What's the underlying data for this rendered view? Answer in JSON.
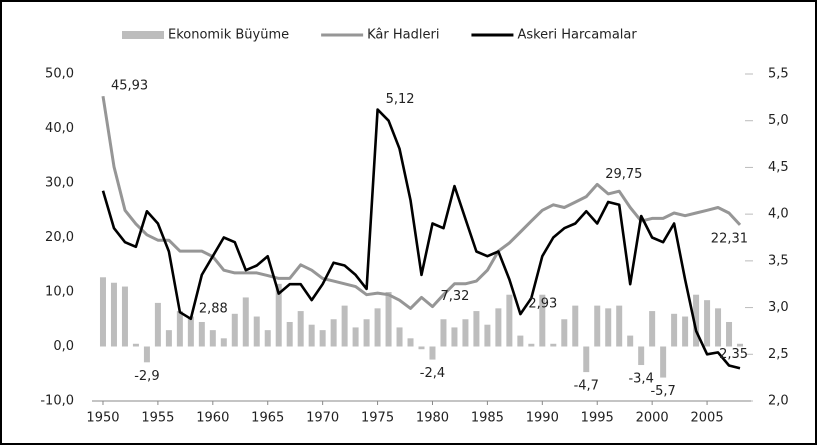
{
  "chart_data": {
    "type": "combo",
    "xlim": [
      1949,
      2009
    ],
    "xticks": [
      1950,
      1955,
      1960,
      1965,
      1970,
      1975,
      1980,
      1985,
      1990,
      1995,
      2000,
      2005
    ],
    "ylim": [
      -10,
      50
    ],
    "yticks": [
      {
        "value": -10,
        "label": "-10,0"
      },
      {
        "value": 0,
        "label": "0,0"
      },
      {
        "value": 10,
        "label": "10,0"
      },
      {
        "value": 20,
        "label": "20,0"
      },
      {
        "value": 30,
        "label": "30,0"
      },
      {
        "value": 40,
        "label": "40,0"
      },
      {
        "value": 50,
        "label": "50,0"
      }
    ],
    "y2lim": [
      2,
      5.5
    ],
    "y2ticks": [
      {
        "value": 2,
        "label": "2,0"
      },
      {
        "value": 2.5,
        "label": "2,5"
      },
      {
        "value": 3,
        "label": "3,0"
      },
      {
        "value": 3.5,
        "label": "3,5"
      },
      {
        "value": 4,
        "label": "4,0"
      },
      {
        "value": 4.5,
        "label": "4,5"
      },
      {
        "value": 5,
        "label": "5,0"
      },
      {
        "value": 5.5,
        "label": "5,5"
      }
    ],
    "grid": false,
    "legend": "top",
    "x": [
      1950,
      1951,
      1952,
      1953,
      1954,
      1955,
      1956,
      1957,
      1958,
      1959,
      1960,
      1961,
      1962,
      1963,
      1964,
      1965,
      1966,
      1967,
      1968,
      1969,
      1970,
      1971,
      1972,
      1973,
      1974,
      1975,
      1976,
      1977,
      1978,
      1979,
      1980,
      1981,
      1982,
      1983,
      1984,
      1985,
      1986,
      1987,
      1988,
      1989,
      1990,
      1991,
      1992,
      1993,
      1994,
      1995,
      1996,
      1997,
      1998,
      1999,
      2000,
      2001,
      2002,
      2003,
      2004,
      2005,
      2006,
      2007,
      2008
    ],
    "series": [
      {
        "name": "Ekonomik Büyüme",
        "type": "bar",
        "color": "#bdbdbd",
        "values": [
          12.7,
          11.7,
          11,
          0.5,
          -2.9,
          8,
          3,
          6.5,
          5.5,
          4.5,
          3,
          1.5,
          6,
          9,
          5.5,
          3,
          11.5,
          4.5,
          6.5,
          4,
          3,
          5,
          7.5,
          3.5,
          5,
          7,
          10,
          3.5,
          1.5,
          -0.5,
          -2.4,
          5,
          3.5,
          5,
          6.5,
          4,
          7,
          9.5,
          2,
          0.5,
          9.5,
          0.5,
          5,
          7.5,
          -4.7,
          7.5,
          7,
          7.5,
          2,
          -3.4,
          6.5,
          -5.7,
          6,
          5.5,
          9.5,
          8.5,
          7,
          4.5,
          0.5
        ],
        "value_labels": [
          null,
          null,
          null,
          null,
          "-2,9",
          null,
          null,
          null,
          null,
          null,
          null,
          null,
          null,
          null,
          null,
          null,
          null,
          null,
          null,
          null,
          null,
          null,
          null,
          null,
          null,
          null,
          null,
          null,
          null,
          null,
          "-2,4",
          null,
          null,
          null,
          null,
          null,
          null,
          null,
          null,
          null,
          null,
          null,
          null,
          null,
          "-4,7",
          null,
          null,
          null,
          null,
          "-3,4",
          null,
          "-5,7",
          null,
          null,
          null,
          null,
          null,
          null,
          null
        ]
      },
      {
        "name": "Kâr Hadleri",
        "type": "line",
        "color": "#969696",
        "values": [
          45.93,
          33,
          25,
          22.5,
          20.5,
          19.5,
          19.5,
          17.5,
          17.5,
          17.5,
          16.5,
          14,
          13.5,
          13.5,
          13.5,
          13,
          12.5,
          12.5,
          15,
          14,
          12.5,
          12,
          11.5,
          11,
          9.5,
          9.8,
          9.5,
          8.5,
          7,
          9,
          7.32,
          9.5,
          11.5,
          11.5,
          12,
          14,
          17.5,
          19,
          21,
          23,
          25,
          26,
          25.5,
          26.5,
          27.5,
          29.75,
          28,
          28.5,
          25.5,
          23,
          23.5,
          23.5,
          24.5,
          24,
          24.5,
          25,
          25.5,
          24.5,
          22.31
        ],
        "value_labels": [
          "45,93",
          null,
          null,
          null,
          null,
          null,
          null,
          null,
          null,
          null,
          null,
          null,
          null,
          null,
          null,
          null,
          null,
          null,
          null,
          null,
          null,
          null,
          null,
          null,
          null,
          null,
          null,
          null,
          null,
          null,
          "7,32",
          null,
          null,
          null,
          null,
          null,
          null,
          null,
          null,
          null,
          null,
          null,
          null,
          null,
          null,
          "29,75",
          null,
          null,
          null,
          null,
          null,
          null,
          null,
          null,
          null,
          null,
          null,
          null,
          "22,31"
        ]
      },
      {
        "name": "Askeri Harcamalar",
        "type": "line",
        "axis": "y2",
        "color": "#000000",
        "values": [
          4.25,
          3.85,
          3.7,
          3.65,
          4.03,
          3.9,
          3.6,
          2.95,
          2.88,
          3.35,
          3.55,
          3.75,
          3.7,
          3.4,
          3.45,
          3.55,
          3.15,
          3.25,
          3.25,
          3.08,
          3.25,
          3.48,
          3.45,
          3.35,
          3.2,
          5.12,
          5.0,
          4.7,
          4.15,
          3.35,
          3.9,
          3.85,
          4.3,
          3.95,
          3.6,
          3.55,
          3.6,
          3.3,
          2.93,
          3.1,
          3.55,
          3.75,
          3.85,
          3.9,
          4.03,
          3.9,
          4.13,
          4.1,
          3.25,
          3.98,
          3.75,
          3.7,
          3.9,
          3.3,
          2.75,
          2.5,
          2.52,
          2.38,
          2.35
        ],
        "value_labels": [
          null,
          null,
          null,
          null,
          null,
          null,
          null,
          null,
          "2,88",
          null,
          null,
          null,
          null,
          null,
          null,
          null,
          null,
          null,
          null,
          null,
          null,
          null,
          null,
          null,
          null,
          "5,12",
          null,
          null,
          null,
          null,
          null,
          null,
          null,
          null,
          null,
          null,
          null,
          null,
          "2,93",
          null,
          null,
          null,
          null,
          null,
          null,
          null,
          null,
          null,
          null,
          null,
          null,
          null,
          null,
          null,
          null,
          null,
          null,
          null,
          "2,35"
        ]
      }
    ]
  }
}
